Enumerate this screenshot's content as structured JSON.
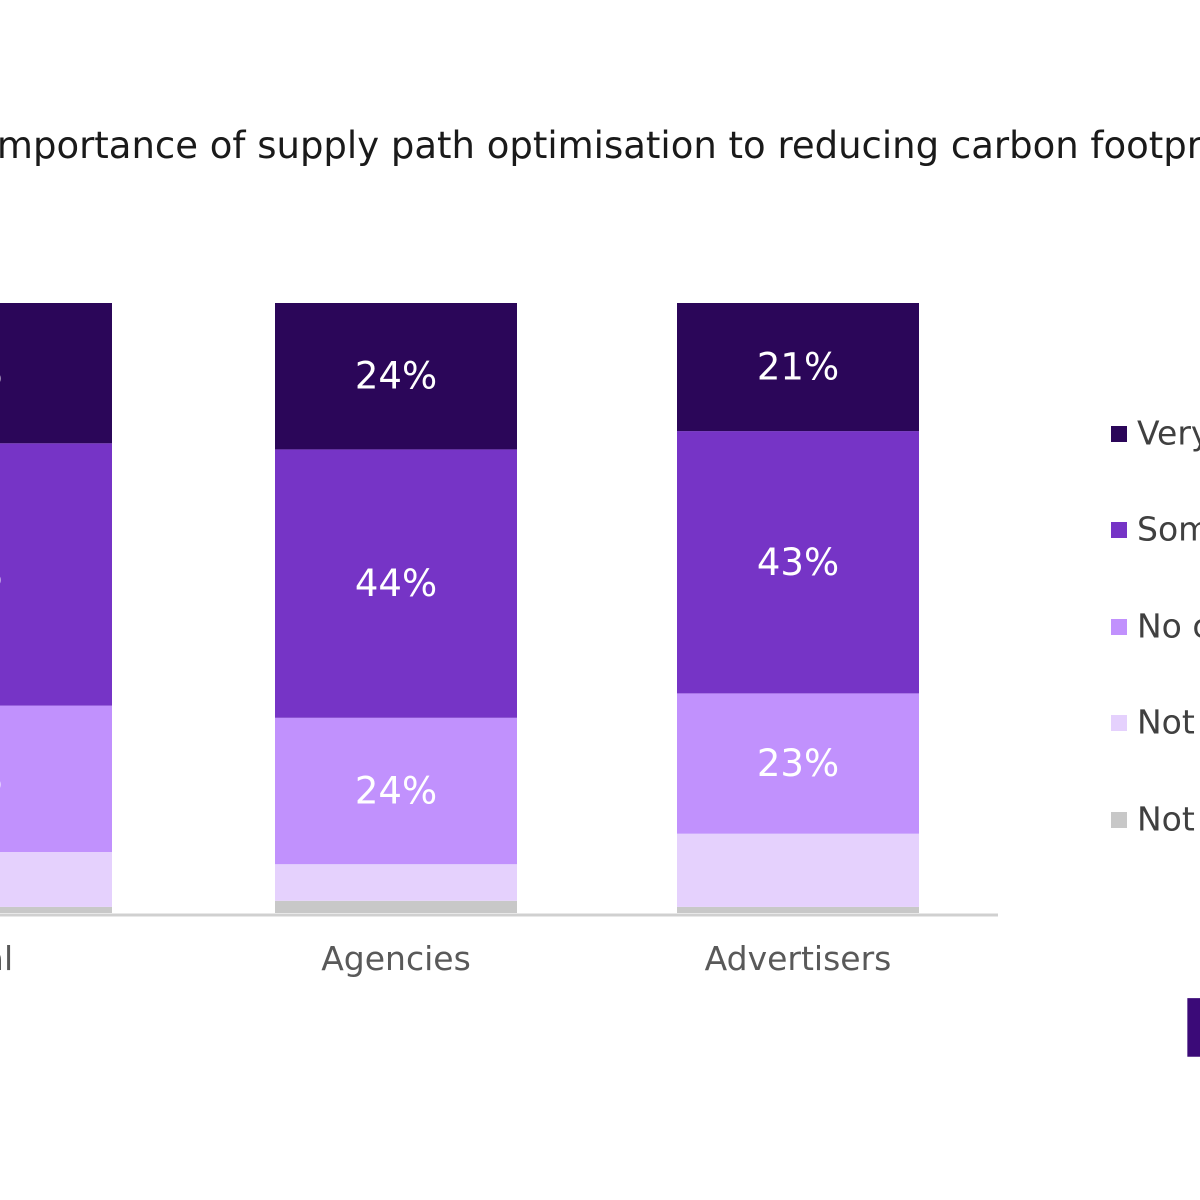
{
  "chart_data": {
    "type": "bar",
    "stacked": true,
    "title": "Importance of supply path optimisation to reducing carbon footprint",
    "categories": [
      "Total",
      "Agencies",
      "Advertisers"
    ],
    "ylim": [
      0,
      100
    ],
    "grid": false,
    "legend_position": "right",
    "series": [
      {
        "name": "Very",
        "color": "#2b0659",
        "values": [
          23,
          24,
          21
        ],
        "labels": [
          "%",
          "24%",
          "21%"
        ]
      },
      {
        "name": "Som",
        "color": "#7634c6",
        "values": [
          43,
          44,
          43
        ],
        "labels": [
          "%",
          "44%",
          "43%"
        ]
      },
      {
        "name": "No c",
        "color": "#c191fd",
        "values": [
          24,
          24,
          23
        ],
        "labels": [
          "%",
          "24%",
          "23%"
        ]
      },
      {
        "name": "Not",
        "color": "#e5d1fd",
        "values": [
          9,
          6,
          12
        ],
        "labels": [
          "",
          "",
          ""
        ]
      },
      {
        "name": "Not",
        "color": "#c8c8c8",
        "values": [
          1,
          2,
          1
        ],
        "labels": [
          "",
          "",
          ""
        ]
      }
    ],
    "category_labels": [
      "tal",
      "Agencies",
      "Advertisers"
    ]
  },
  "logo": {
    "text": "F"
  }
}
